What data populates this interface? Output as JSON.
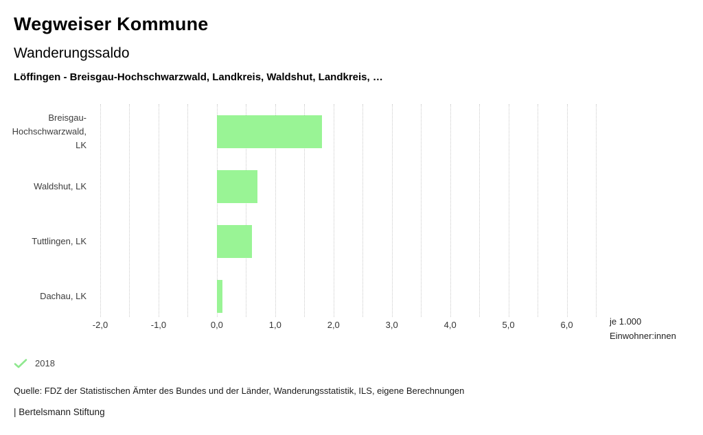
{
  "header": {
    "title": "Wegweiser Kommune",
    "subtitle": "Wanderungssaldo",
    "qualifier": "Löffingen - Breisgau-Hochschwarzwald, Landkreis, Waldshut, Landkreis, …"
  },
  "chart_data": {
    "type": "bar",
    "orientation": "horizontal",
    "title": "Wanderungssaldo",
    "categories": [
      "Breisgau-Hochschwarzwald, LK",
      "Waldshut, LK",
      "Tuttlingen, LK",
      "Dachau, LK"
    ],
    "series": [
      {
        "name": "2018",
        "values": [
          1.8,
          0.7,
          0.6,
          0.1
        ]
      }
    ],
    "xlabel": "je 1.000 Einwohner:innen",
    "unit_line1": "je 1.000",
    "unit_line2": "Einwohner:innen",
    "xlim": [
      -2.0,
      6.5
    ],
    "grid": true,
    "grid_step": 0.5,
    "tick_values": [
      -2,
      -1,
      0,
      1,
      2,
      3,
      4,
      5,
      6
    ],
    "tick_labels": [
      "-2,0",
      "-1,0",
      "0,0",
      "1,0",
      "2,0",
      "3,0",
      "4,0",
      "5,0",
      "6,0"
    ],
    "legend_position": "bottom-left",
    "bar_color": "#99f495",
    "grid_color": "#c9c9c9"
  },
  "legend": {
    "year_label": "2018",
    "check_color": "#8fe88f"
  },
  "footer": {
    "source": "Quelle: FDZ der Statistischen Ämter des Bundes und der Länder, Wanderungsstatistik, ILS, eigene Berechnungen",
    "branding": "| Bertelsmann Stiftung"
  }
}
